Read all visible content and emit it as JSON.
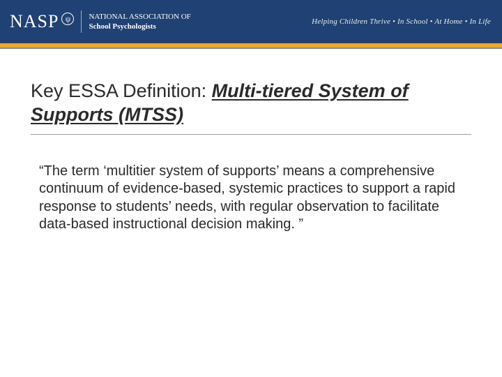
{
  "header": {
    "logo_acronym": "NASP",
    "logo_symbol": "ψ",
    "org_name_line1": "NATIONAL ASSOCIATION OF",
    "org_name_line2": "School Psychologists",
    "tagline": "Helping Children Thrive • In School • At Home • In Life",
    "background_color": "#1f4173",
    "accent_color": "#f3a81c"
  },
  "slide": {
    "title_plain": "Key ESSA Definition: ",
    "title_emph": "Multi-tiered System of Supports (MTSS)",
    "body": "“The term ‘multitier system of supports’ means a comprehensive continuum of evidence-based, systemic practices to support a rapid response to students’ needs, with regular observation to facilitate data-based instructional decision making. ”",
    "title_fontsize": 27,
    "body_fontsize": 20,
    "text_color": "#2a2a2a",
    "underline_color": "#2a2a2a"
  }
}
